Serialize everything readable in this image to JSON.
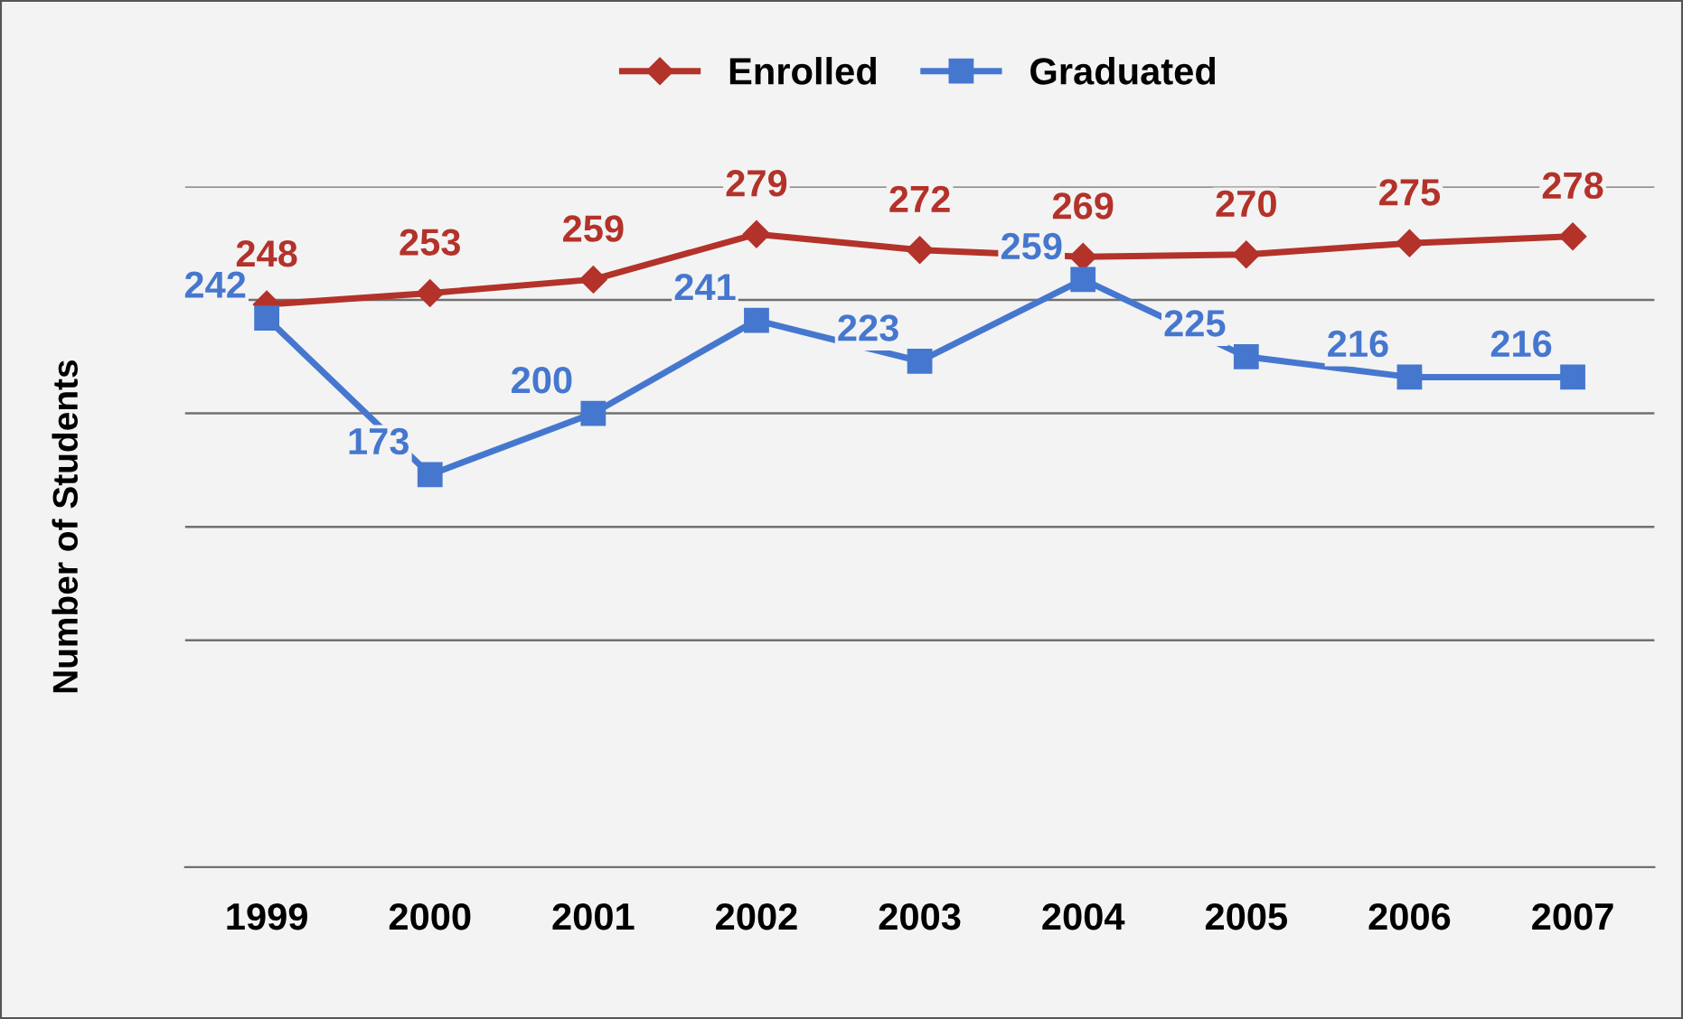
{
  "chart_data": {
    "type": "line",
    "ylabel": "Number of Students",
    "categories": [
      "1999",
      "2000",
      "2001",
      "2002",
      "2003",
      "2004",
      "2005",
      "2006",
      "2007"
    ],
    "series": [
      {
        "name": "Enrolled",
        "color": "#b3322a",
        "marker": "diamond",
        "values": [
          248,
          253,
          259,
          279,
          272,
          269,
          270,
          275,
          278
        ]
      },
      {
        "name": "Graduated",
        "color": "#4677cf",
        "marker": "square",
        "values": [
          242,
          173,
          200,
          241,
          223,
          259,
          225,
          216,
          216
        ]
      }
    ],
    "ylim": [
      0,
      300
    ],
    "yticks": [
      {
        "value": 100,
        "label": null
      },
      {
        "value": 150,
        "label": null
      },
      {
        "value": 200,
        "label": null
      },
      {
        "value": 250,
        "label": null
      },
      {
        "value": 300,
        "label": null
      }
    ],
    "tick_labels": "x",
    "grid": "y",
    "legend": "top",
    "data_labels": true,
    "line_style": "solid"
  }
}
